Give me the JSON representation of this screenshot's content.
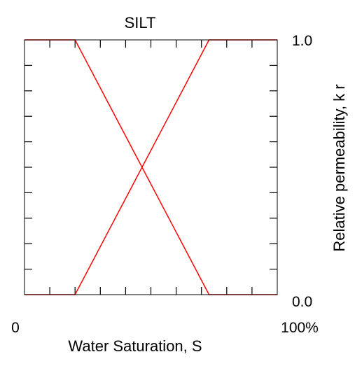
{
  "chart_data": {
    "type": "line",
    "title": "SILT",
    "xlabel": "Water Saturation, S",
    "ylabel": "Relative permeability, k r",
    "xlim": [
      0,
      100
    ],
    "ylim": [
      0,
      1
    ],
    "x_tick_labels": {
      "min": "0",
      "max": "100%"
    },
    "y_tick_labels": {
      "min": "0.0",
      "max": "1.0"
    },
    "grid": false,
    "colors": {
      "series": "#ff0000",
      "axes": "#000000"
    },
    "series": [
      {
        "x": [
          0,
          20,
          73,
          100
        ],
        "y": [
          1.0,
          1.0,
          0.0,
          0.0
        ]
      },
      {
        "x": [
          0,
          20,
          73,
          100
        ],
        "y": [
          0.0,
          0.0,
          1.0,
          1.0
        ]
      }
    ]
  }
}
